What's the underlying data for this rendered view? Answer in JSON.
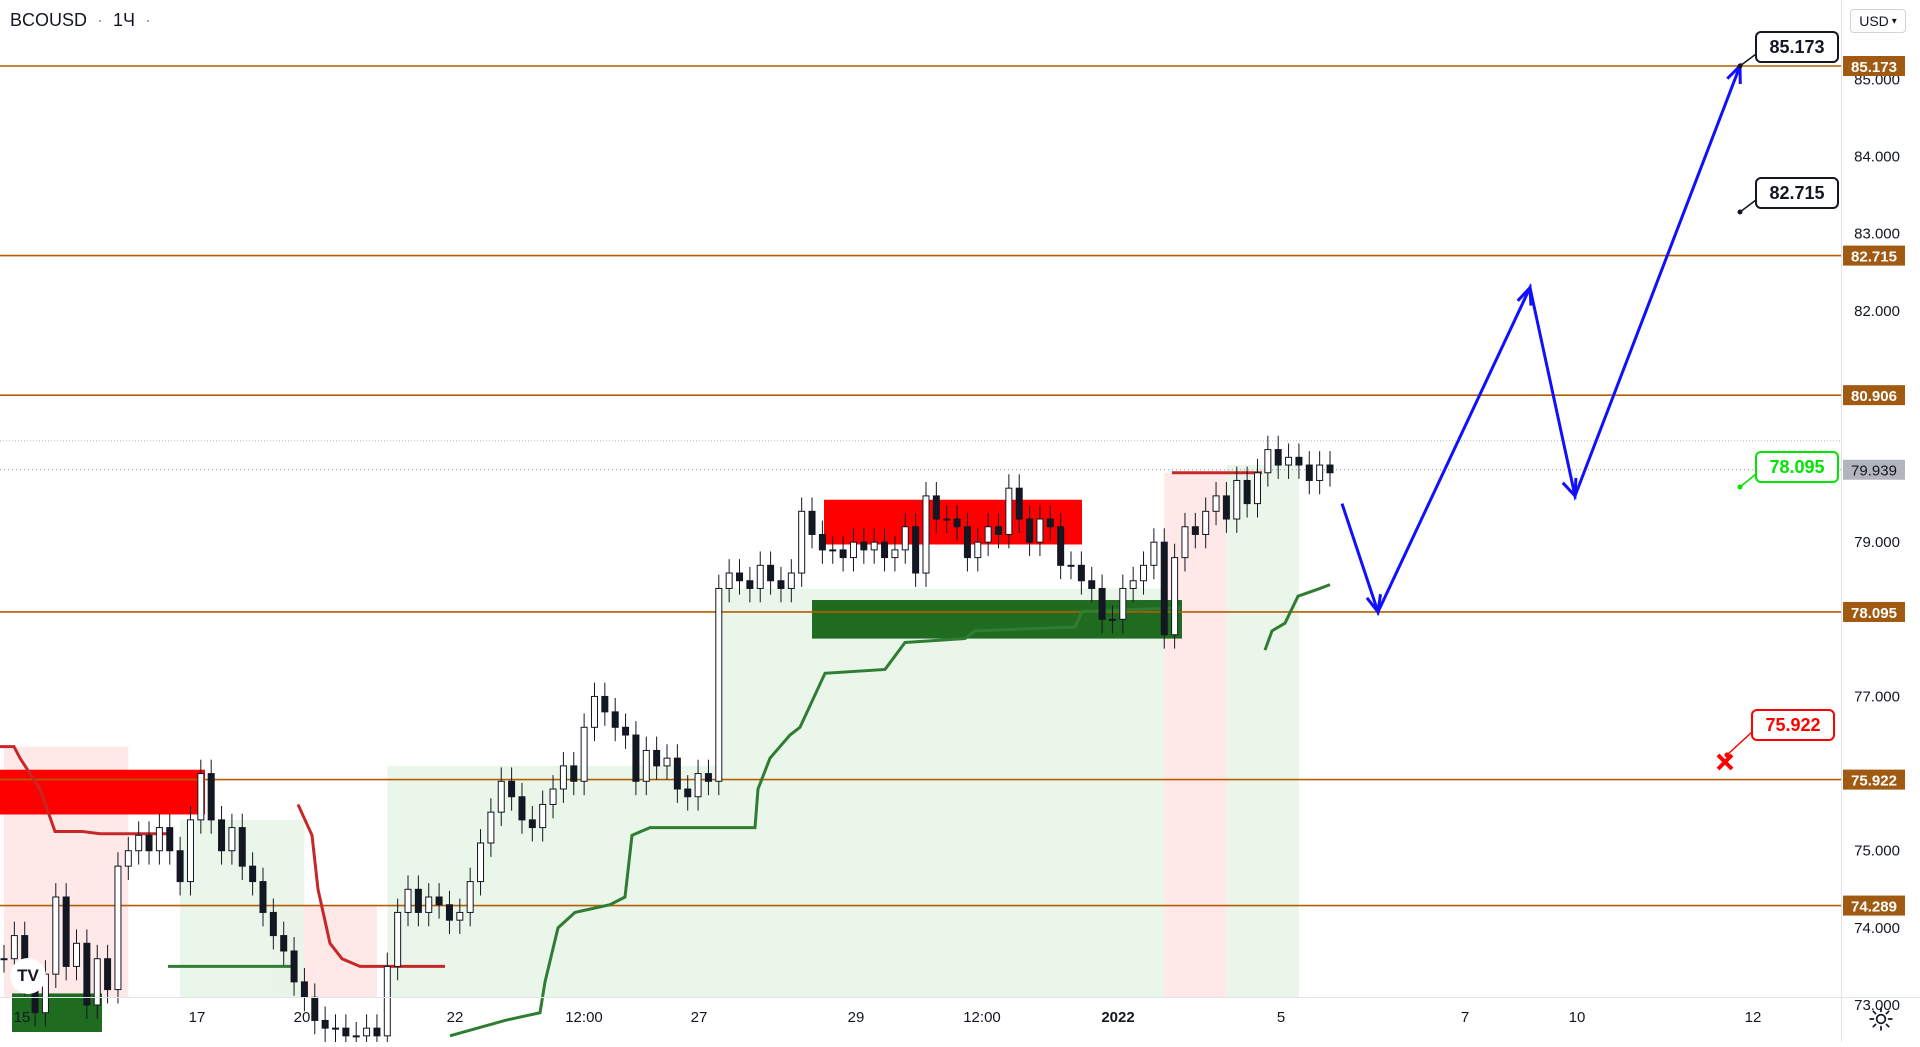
{
  "header": {
    "symbol": "BCOUSD",
    "interval": "1Ч"
  },
  "currency_button": {
    "label": "USD",
    "icon": "chevron-down-icon"
  },
  "colors": {
    "level_line": "#b35e00",
    "level_label_bg": "#a05a12",
    "supply_zone": "#ff0000",
    "demand_zone": "#1f6b1f",
    "projection": "#1010ff",
    "stop_loss_up": "#c62828",
    "stop_loss_down": "#2e7d32",
    "last_price_bg": "#b2b5be",
    "callout_green": "#00e600",
    "callout_red": "#ff0000"
  },
  "chart_data": {
    "type": "candlestick",
    "symbol": "BCOUSD",
    "interval": "1Ч",
    "ylim": [
      72.6,
      86.3
    ],
    "y_ticks": [
      73.0,
      74.0,
      75.0,
      77.0,
      79.0,
      82.0,
      83.0,
      84.0,
      85.0
    ],
    "y_tick_labels": [
      "73.000",
      "74.000",
      "75.000",
      "77.000",
      "79.000",
      "82.000",
      "83.000",
      "84.000",
      "85.000"
    ],
    "x_ticks": [
      "15",
      "17",
      "20",
      "22",
      "12:00",
      "27",
      "29",
      "12:00",
      "2022",
      "5",
      "7",
      "10",
      "12"
    ],
    "horizontal_levels": [
      85.173,
      82.715,
      80.906,
      78.095,
      75.922,
      74.289
    ],
    "horizontal_level_labels": [
      "85.173",
      "82.715",
      "80.906",
      "78.095",
      "75.922",
      "74.289"
    ],
    "last_price": 79.939,
    "last_price_label": "79.939",
    "callouts": [
      {
        "label": "85.173",
        "kind": "target",
        "color": "black"
      },
      {
        "label": "82.715",
        "kind": "target",
        "color": "black"
      },
      {
        "label": "78.095",
        "kind": "entry",
        "color": "green"
      },
      {
        "label": "75.922",
        "kind": "stop",
        "color": "red"
      }
    ],
    "supply_zones": [
      {
        "price_top": 76.05,
        "price_bottom": 75.47
      },
      {
        "price_top": 79.55,
        "price_bottom": 78.97
      }
    ],
    "demand_zones": [
      {
        "price_top": 78.25,
        "price_bottom": 77.75
      },
      {
        "price_top": 73.15,
        "price_bottom": 72.65
      }
    ],
    "projection_path_prices": [
      79.5,
      78.095,
      82.3,
      79.6,
      85.173
    ],
    "close_series": [
      73.6,
      73.9,
      73.3,
      72.9,
      73.4,
      74.4,
      73.5,
      73.8,
      73.0,
      73.6,
      73.2,
      74.8,
      75.0,
      75.2,
      75.0,
      75.3,
      75.0,
      74.6,
      75.4,
      76.0,
      75.4,
      75.0,
      75.3,
      74.8,
      74.6,
      74.2,
      73.9,
      73.7,
      73.3,
      73.1,
      72.8,
      72.7,
      72.7,
      72.6,
      72.6,
      72.7,
      72.6,
      73.5,
      74.2,
      74.5,
      74.2,
      74.4,
      74.3,
      74.1,
      74.2,
      74.6,
      75.1,
      75.5,
      75.9,
      75.7,
      75.4,
      75.3,
      75.6,
      75.8,
      76.1,
      75.9,
      76.6,
      77.0,
      76.8,
      76.6,
      76.5,
      75.9,
      76.3,
      76.1,
      76.2,
      75.8,
      75.7,
      76.0,
      75.9,
      78.4,
      78.6,
      78.5,
      78.4,
      78.7,
      78.5,
      78.4,
      78.6,
      79.4,
      79.1,
      78.9,
      78.9,
      78.8,
      79.0,
      78.9,
      79.0,
      78.8,
      78.9,
      79.2,
      78.6,
      79.6,
      79.3,
      79.3,
      79.2,
      78.8,
      79.0,
      79.2,
      79.1,
      79.7,
      79.3,
      79.0,
      79.3,
      79.2,
      78.7,
      78.7,
      78.5,
      78.4,
      78.0,
      78.0,
      78.4,
      78.5,
      78.7,
      79.0,
      77.8,
      78.8,
      79.2,
      79.1,
      79.4,
      79.6,
      79.3,
      79.8,
      79.5,
      79.9,
      80.2,
      80.0,
      80.1,
      80.0,
      79.8,
      80.0,
      79.9
    ]
  }
}
